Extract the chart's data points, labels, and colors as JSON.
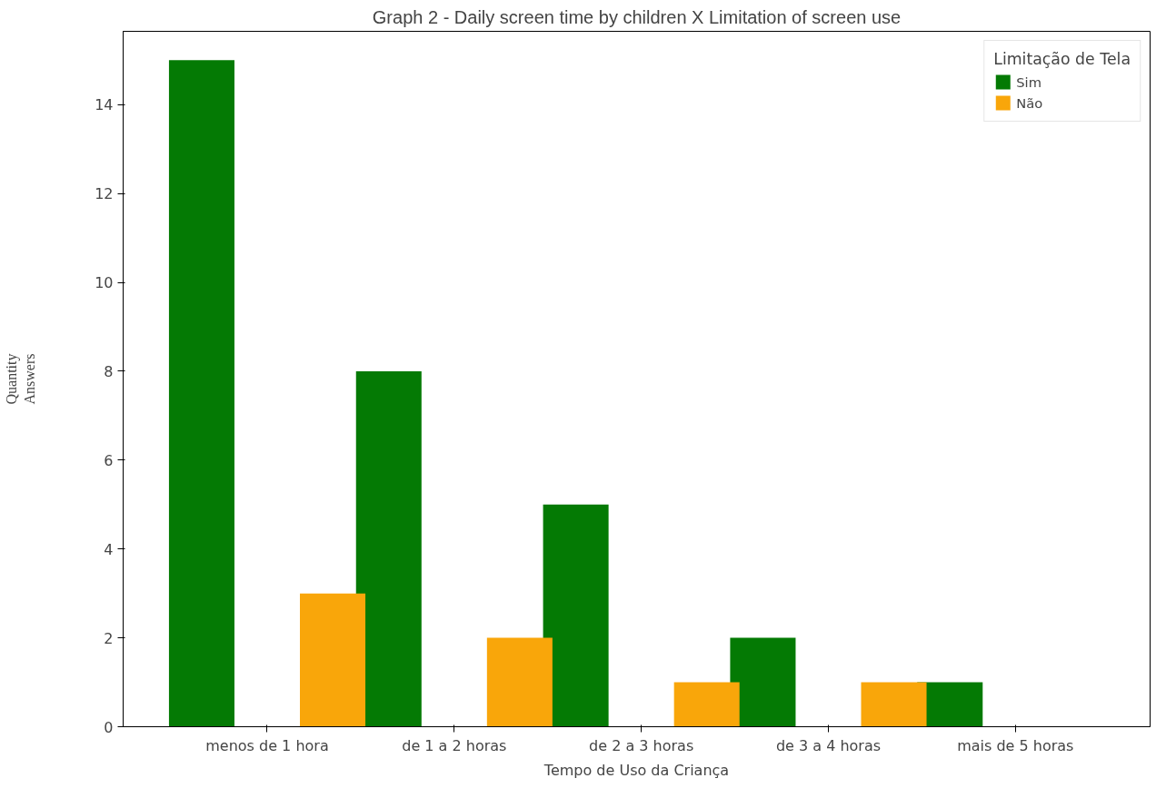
{
  "chart_data": {
    "type": "bar",
    "title": "Graph 2 - Daily screen time by children X Limitation of screen use",
    "xlabel": "Tempo de Uso da Criança",
    "ylabel": "Quantity\nAnswers",
    "legend_title": "Limitação de Tela",
    "categories": [
      "menos de 1 hora",
      "de 1 a 2 horas",
      "de 2 a 3 horas",
      "de 3 a 4 horas",
      "mais de 5 horas"
    ],
    "series": [
      {
        "name": "Sim",
        "color": "#047a04",
        "values": [
          15,
          8,
          5,
          2,
          1
        ]
      },
      {
        "name": "Não",
        "color": "#f9a60a",
        "values": [
          3,
          2,
          1,
          1,
          0
        ]
      }
    ],
    "ylim": [
      0,
      15.65
    ],
    "yticks": [
      0,
      2,
      4,
      6,
      8,
      10,
      12,
      14
    ],
    "grid": false,
    "legend": "top right"
  }
}
